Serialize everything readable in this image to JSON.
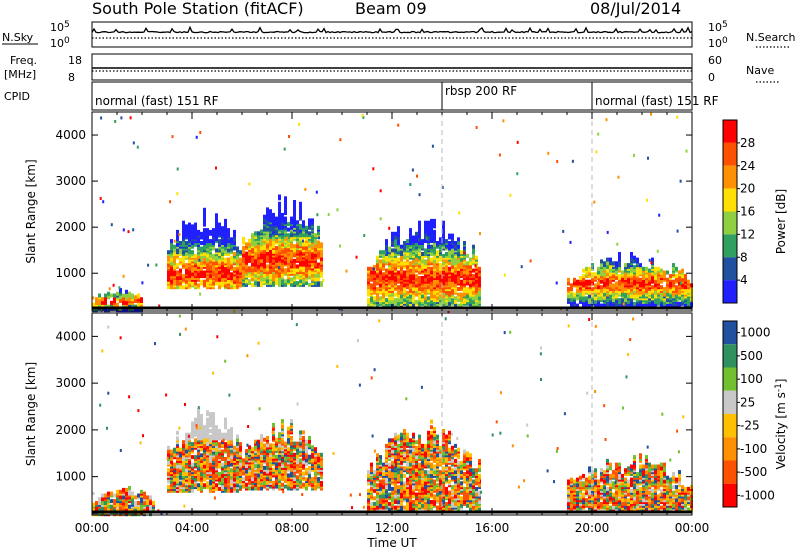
{
  "header": {
    "station": "South Pole Station (fitACF)",
    "beam": "Beam 09",
    "date": "08/Jul/2014"
  },
  "colors": {
    "power": [
      "#2020ff",
      "#2050a0",
      "#30a060",
      "#90d040",
      "#ffe000",
      "#ff9000",
      "#ff5000",
      "#ff0000"
    ],
    "velocity": [
      "#ff0000",
      "#ff5000",
      "#ff9000",
      "#ffc000",
      "#c8c8c8",
      "#70c030",
      "#309060",
      "#2050a0"
    ]
  },
  "chart_data": [
    {
      "type": "line",
      "panel": "noise",
      "left_label": [
        "N.Sky"
      ],
      "left_ticks": [
        "10^5",
        "10^0"
      ],
      "right_label": "N.Search",
      "right_ticks": [
        "10^5",
        "10^0"
      ],
      "xlim": [
        0,
        24
      ]
    },
    {
      "type": "line",
      "panel": "frequency",
      "left_label": [
        "Freq.",
        "[MHz]"
      ],
      "left_ticks": [
        "18",
        "8"
      ],
      "ylim": [
        8,
        18
      ],
      "right_label": "Nave",
      "right_ticks": [
        "60",
        "0"
      ],
      "xlim": [
        0,
        24
      ]
    },
    {
      "type": "table",
      "panel": "cpid",
      "label": "CPID",
      "segments": [
        {
          "start": 0,
          "end": 14.0,
          "label": "normal (fast) 151 RF"
        },
        {
          "start": 14.0,
          "end": 20.0,
          "label": "rbsp 200 RF"
        },
        {
          "start": 20.0,
          "end": 24,
          "label": "normal (fast) 151 RF"
        }
      ]
    },
    {
      "type": "heatmap",
      "panel": "power",
      "ylabel": "Slant Range [km]",
      "yticks": [
        "1000",
        "2000",
        "3000",
        "4000"
      ],
      "ylim": [
        180,
        4500
      ],
      "xlim": [
        0,
        24
      ],
      "colorbar_label": "Power [dB]",
      "colorbar_ticks": [
        "4",
        "8",
        "12",
        "16",
        "20",
        "24",
        "28"
      ],
      "regions": [
        {
          "t0": 3.0,
          "t1": 6.0,
          "r0": 700,
          "r1": 2200,
          "peak": 1000
        },
        {
          "t0": 6.0,
          "t1": 9.2,
          "r0": 750,
          "r1": 2400,
          "peak": 1300
        },
        {
          "t0": 0.0,
          "t1": 2.0,
          "r0": 200,
          "r1": 600,
          "peak": 400
        },
        {
          "t0": 11.0,
          "t1": 15.5,
          "r0": 300,
          "r1": 2000,
          "peak": 900
        },
        {
          "t0": 19.0,
          "t1": 24.0,
          "r0": 300,
          "r1": 1300,
          "peak": 800
        }
      ]
    },
    {
      "type": "heatmap",
      "panel": "velocity",
      "ylabel": "Slant Range [km]",
      "yticks": [
        "1000",
        "2000",
        "3000",
        "4000"
      ],
      "ylim": [
        180,
        4500
      ],
      "xlim": [
        0,
        24
      ],
      "colorbar_label": "Velocity [m s^-1]",
      "colorbar_ticks": [
        "1000",
        "500",
        "100",
        "25",
        "-25",
        "-100",
        "-500",
        "-1000"
      ],
      "regions": [
        {
          "t0": 3.0,
          "t1": 6.0,
          "r0": 700,
          "r1": 2200
        },
        {
          "t0": 6.0,
          "t1": 9.2,
          "r0": 750,
          "r1": 2000
        },
        {
          "t0": 0.0,
          "t1": 2.5,
          "r0": 200,
          "r1": 700
        },
        {
          "t0": 11.0,
          "t1": 15.5,
          "r0": 300,
          "r1": 1900
        },
        {
          "t0": 19.0,
          "t1": 24.0,
          "r0": 300,
          "r1": 1300
        }
      ]
    }
  ],
  "xaxis": {
    "label": "Time UT",
    "ticks": [
      {
        "t": 0,
        "label": "00:00"
      },
      {
        "t": 4,
        "label": "04:00"
      },
      {
        "t": 8,
        "label": "08:00"
      },
      {
        "t": 12,
        "label": "12:00"
      },
      {
        "t": 16,
        "label": "16:00"
      },
      {
        "t": 20,
        "label": "20:00"
      },
      {
        "t": 24,
        "label": "00:00"
      }
    ]
  }
}
